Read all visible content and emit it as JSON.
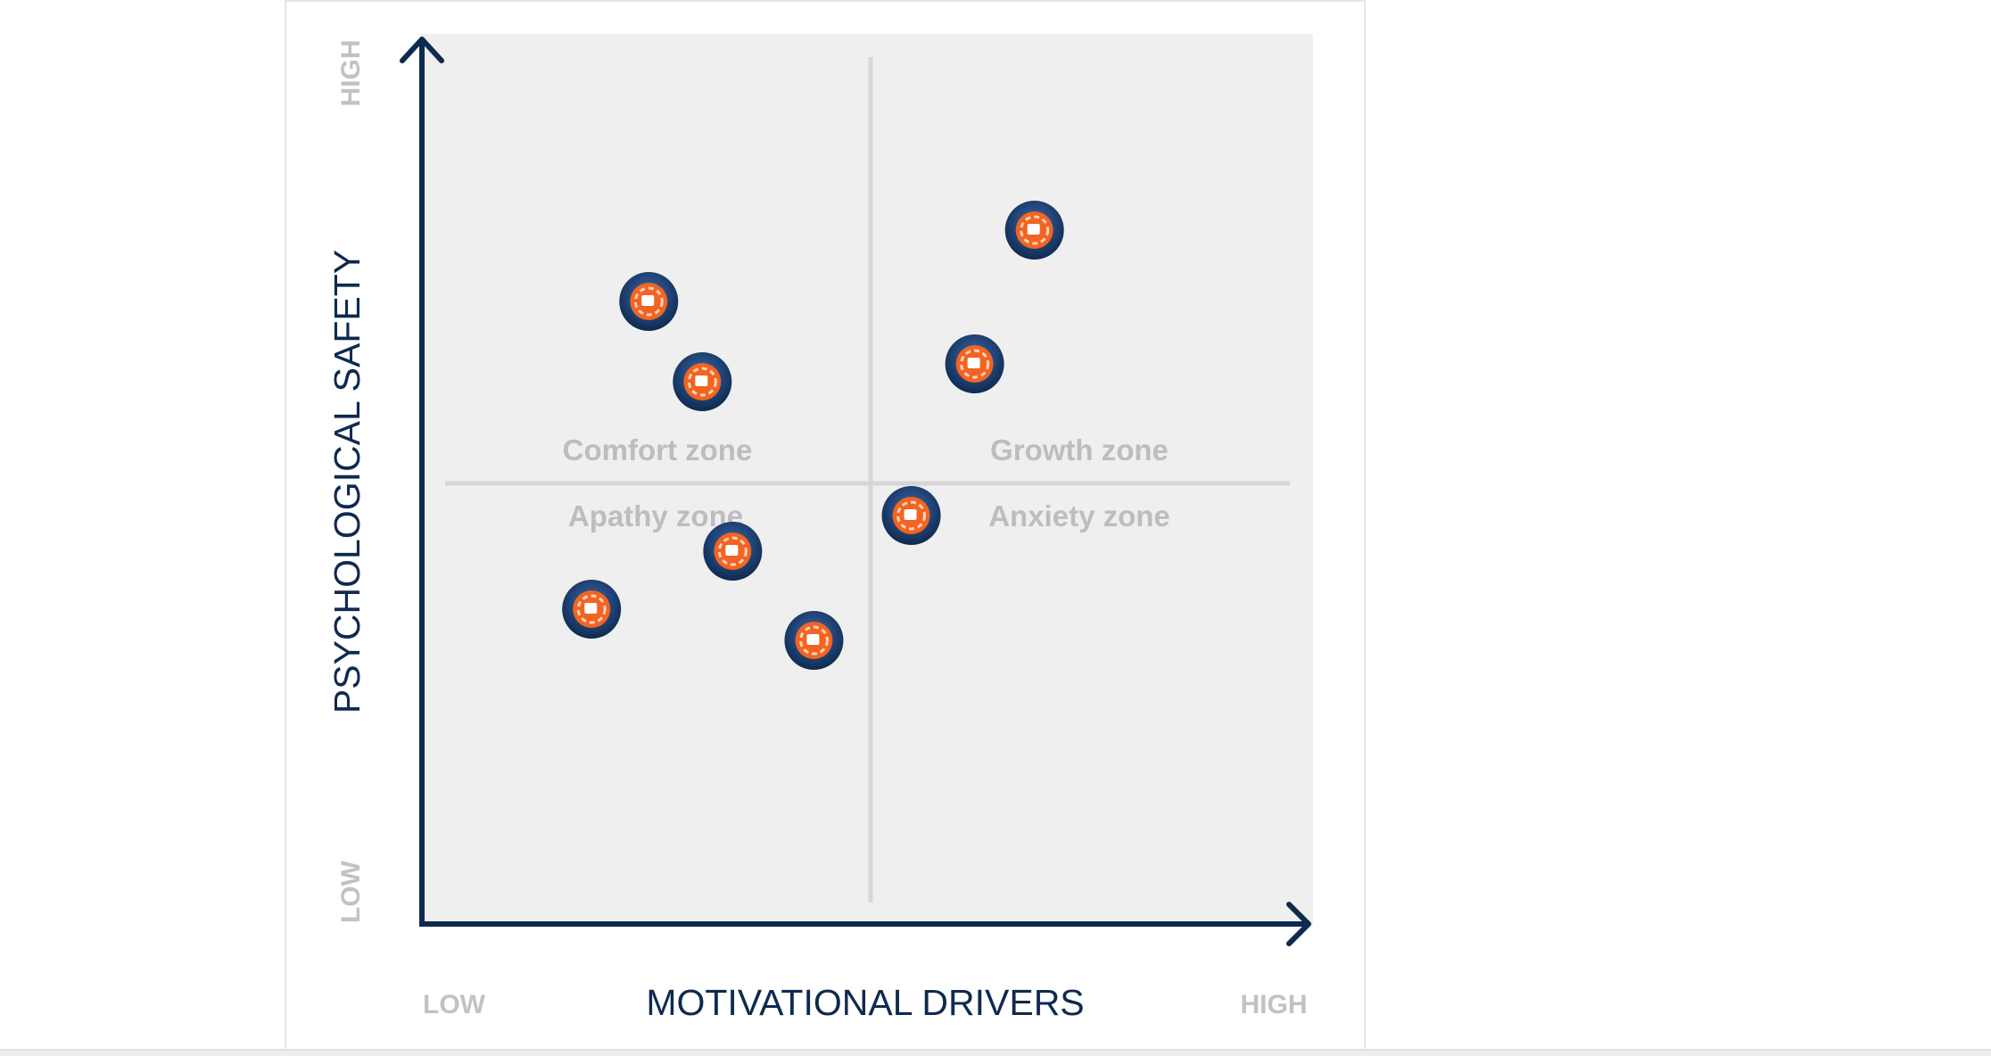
{
  "chart_data": {
    "type": "scatter",
    "title": "",
    "xlabel": "MOTIVATIONAL DRIVERS",
    "ylabel": "PSYCHOLOGICAL SAFETY",
    "x_low_label": "LOW",
    "x_high_label": "HIGH",
    "y_low_label": "LOW",
    "y_high_label": "HIGH",
    "xlim": [
      0,
      10
    ],
    "ylim": [
      0,
      10
    ],
    "grid": false,
    "quadrant_divider": {
      "x": 5,
      "y": 5
    },
    "zones": [
      {
        "name": "comfort",
        "label": "Comfort zone"
      },
      {
        "name": "growth",
        "label": "Growth zone"
      },
      {
        "name": "apathy",
        "label": "Apathy zone"
      },
      {
        "name": "anxiety",
        "label": "Anxiety zone"
      }
    ],
    "points": [
      {
        "x": 2.56,
        "y": 7.0
      },
      {
        "x": 3.16,
        "y": 6.1
      },
      {
        "x": 3.5,
        "y": 4.2
      },
      {
        "x": 1.92,
        "y": 3.55
      },
      {
        "x": 4.41,
        "y": 3.2
      },
      {
        "x": 5.5,
        "y": 4.6
      },
      {
        "x": 6.21,
        "y": 6.3
      },
      {
        "x": 6.88,
        "y": 7.8
      }
    ]
  },
  "colors": {
    "axis": "#0f2a4f",
    "plot_bg": "#efefef",
    "divider": "#d6d6d6",
    "zone_label": "#bdbdbd",
    "end_label": "#c2c2c2",
    "marker_ring": "#1d3f73",
    "marker_inner": "#f26422"
  }
}
